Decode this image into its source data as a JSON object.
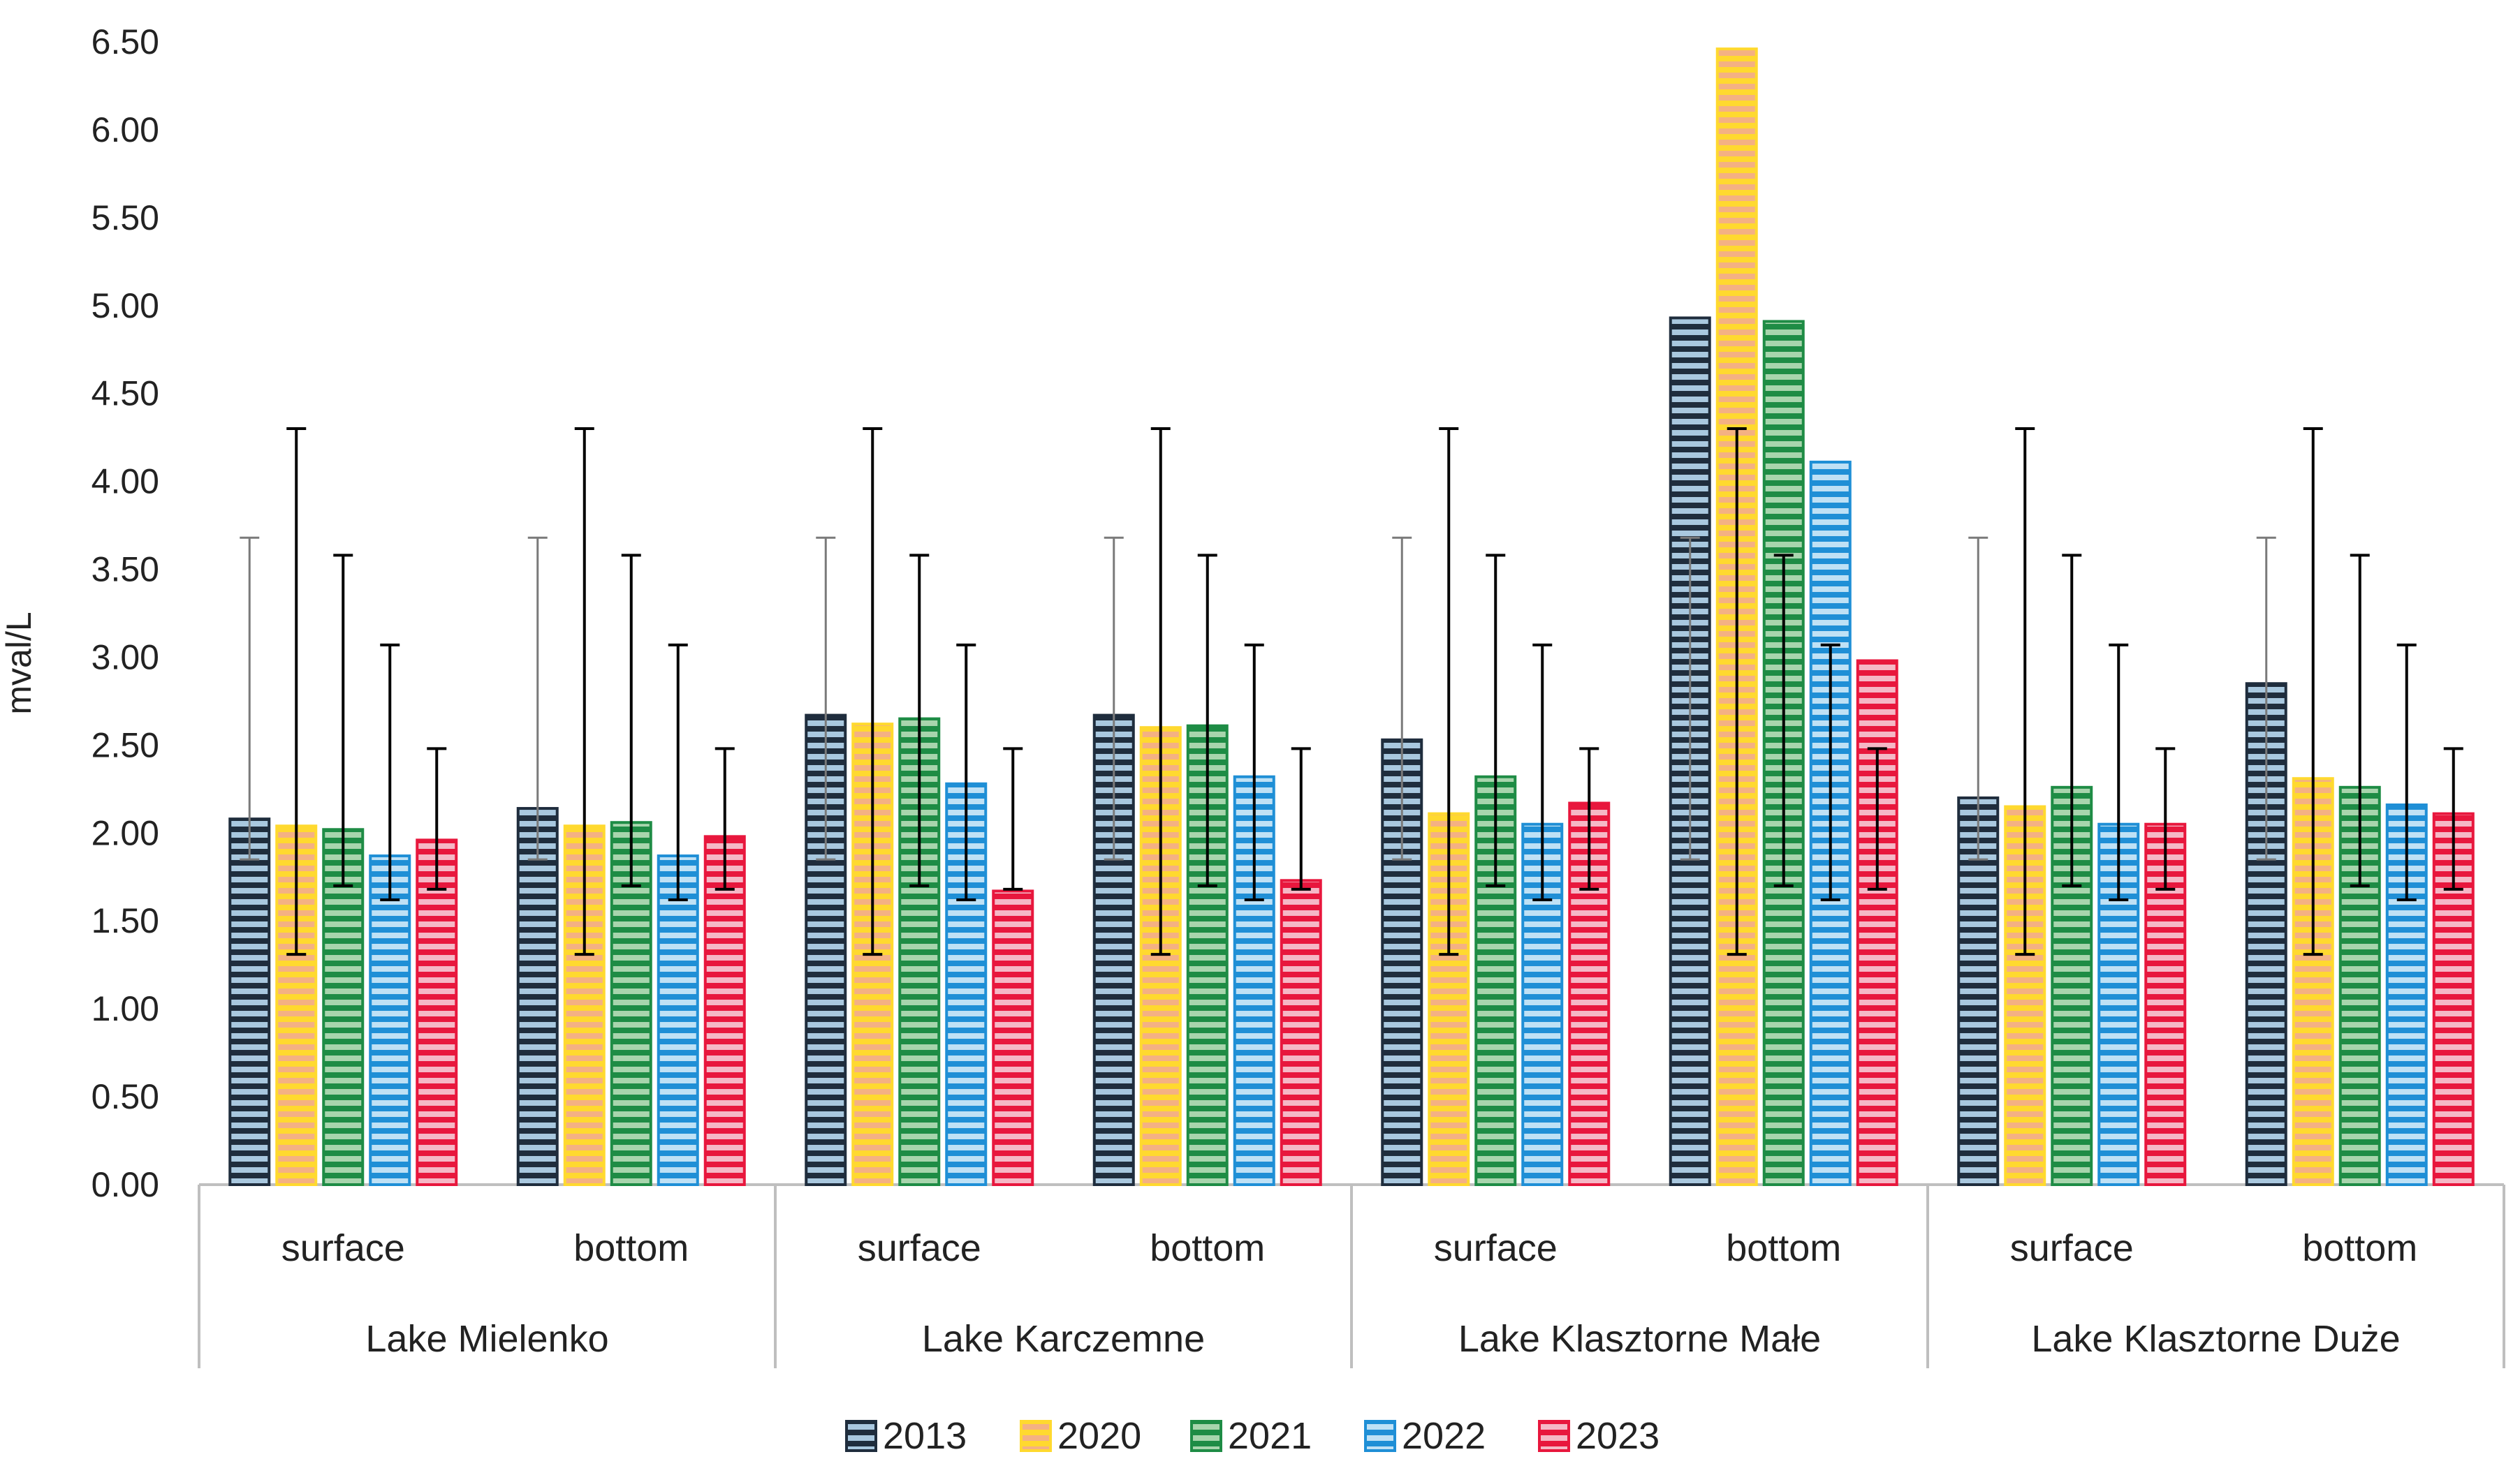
{
  "chart_data": {
    "type": "bar",
    "title": "",
    "xlabel": "",
    "ylabel": "mval/L",
    "ylim": [
      0,
      6.5
    ],
    "yticks": [
      "0.00",
      "0.50",
      "1.00",
      "1.50",
      "2.00",
      "2.50",
      "3.00",
      "3.50",
      "4.00",
      "4.50",
      "5.00",
      "5.50",
      "6.00",
      "6.50"
    ],
    "groups": [
      "Lake Mielenko",
      "Lake Karczemne",
      "Lake Klasztorne Małe",
      "Lake Klasztorne Duże"
    ],
    "subcategories": [
      "surface",
      "bottom"
    ],
    "categories": [
      "Lake Mielenko surface",
      "Lake Mielenko bottom",
      "Lake Karczemne surface",
      "Lake Karczemne bottom",
      "Lake Klasztorne Małe surface",
      "Lake Klasztorne Małe bottom",
      "Lake Klasztorne Duże surface",
      "Lake Klasztorne Duże bottom"
    ],
    "legend_position": "bottom",
    "series": [
      {
        "name": "2013",
        "color": "#1f2d3d",
        "stripe": "#a9c8df",
        "error_color": "#7a7a7a",
        "values": [
          2.08,
          2.14,
          2.67,
          2.67,
          2.53,
          4.93,
          2.2,
          2.85
        ],
        "error_range": [
          1.85,
          3.68
        ]
      },
      {
        "name": "2020",
        "color": "#ffd92f",
        "stripe": "#f4b183",
        "error_color": "#000000",
        "values": [
          2.04,
          2.04,
          2.62,
          2.6,
          2.11,
          6.46,
          2.15,
          2.31
        ],
        "error_range": [
          1.31,
          4.3
        ]
      },
      {
        "name": "2021",
        "color": "#1e8c45",
        "stripe": "#a8d5ad",
        "error_color": "#000000",
        "values": [
          2.02,
          2.06,
          2.65,
          2.61,
          2.32,
          4.91,
          2.26,
          2.26
        ],
        "error_range": [
          1.7,
          3.58
        ]
      },
      {
        "name": "2022",
        "color": "#1f8fd6",
        "stripe": "#bfe1f5",
        "error_color": "#000000",
        "values": [
          1.87,
          1.87,
          2.28,
          2.32,
          2.05,
          4.11,
          2.05,
          2.16
        ],
        "error_range": [
          1.62,
          3.07
        ]
      },
      {
        "name": "2023",
        "color": "#e8173d",
        "stripe": "#f5b8c6",
        "error_color": "#000000",
        "values": [
          1.96,
          1.98,
          1.67,
          1.73,
          2.17,
          2.98,
          2.05,
          2.11
        ],
        "error_range": [
          1.68,
          2.48
        ]
      }
    ]
  }
}
